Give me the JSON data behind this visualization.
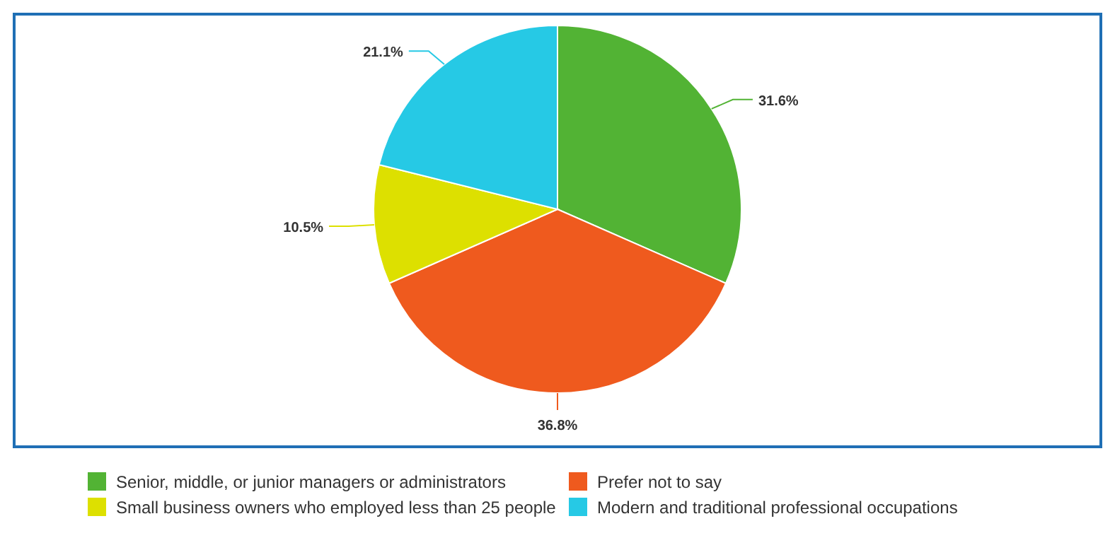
{
  "chart_data": {
    "type": "pie",
    "categories": [
      "Senior, middle, or junior managers or administrators",
      "Prefer not to say",
      "Small business owners who employed less than 25 people",
      "Modern and traditional professional occupations"
    ],
    "values": [
      31.6,
      36.8,
      10.5,
      21.1
    ],
    "colors": [
      "#52b334",
      "#ef5a1e",
      "#dde000",
      "#26c9e5"
    ],
    "value_labels": [
      "31.6%",
      "36.8%",
      "10.5%",
      "21.1%"
    ],
    "legend": "bottom"
  }
}
